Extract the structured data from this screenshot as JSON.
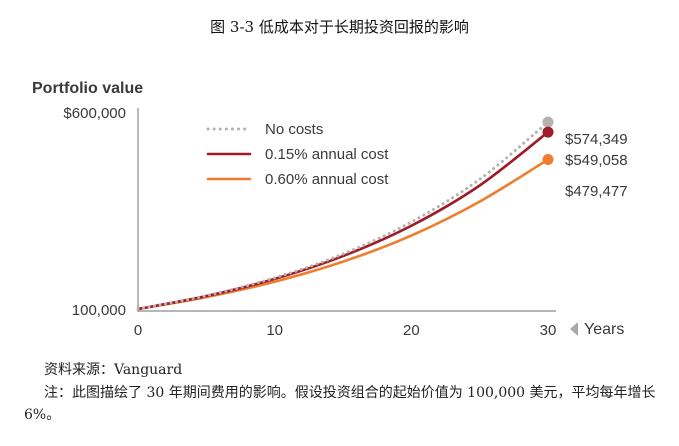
{
  "caption": "图 3-3 低成本对于长期投资回报的影响",
  "source": "资料来源：Vanguard",
  "note": "注：此图描绘了 30 年期间费用的影响。假设投资组合的起始价值为 100,000 美元，平均每年增长 6%。",
  "chart_data": {
    "type": "line",
    "ylabel": "Portfolio value",
    "xlabel": "Years",
    "xlim": [
      0,
      30
    ],
    "ylim": [
      100000,
      600000
    ],
    "x_ticks": [
      "0",
      "10",
      "20",
      "30"
    ],
    "y_ticks": [
      "100,000",
      "$600,000"
    ],
    "legend_position": "top-left",
    "series": [
      {
        "name": "No costs",
        "color": "#b7b1ae",
        "style": "dotted",
        "x": [
          0,
          5,
          10,
          15,
          20,
          25,
          30
        ],
        "values": [
          100000,
          133823,
          179085,
          239656,
          320714,
          429187,
          574349
        ],
        "end_label": "$574,349"
      },
      {
        "name": "0.15% annual cost",
        "color": "#9e1b27",
        "style": "solid",
        "x": [
          0,
          5,
          10,
          15,
          20,
          25,
          30
        ],
        "values": [
          100000,
          132828,
          176431,
          234348,
          311276,
          413458,
          549058
        ],
        "end_label": "$549,058"
      },
      {
        "name": "0.60% annual cost",
        "color": "#ee7d2e",
        "style": "solid",
        "x": [
          0,
          5,
          10,
          15,
          20,
          25,
          30
        ],
        "values": [
          100000,
          130094,
          169238,
          220166,
          286421,
          372611,
          479477
        ],
        "end_label": "$479,477"
      }
    ]
  }
}
